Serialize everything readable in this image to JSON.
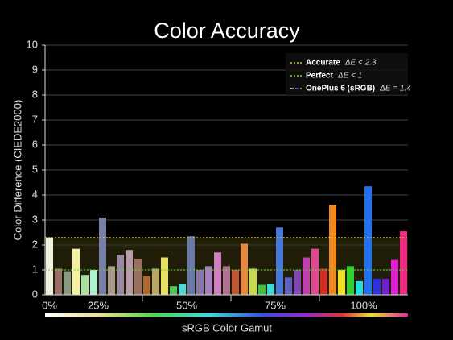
{
  "chart_data": {
    "type": "bar",
    "title": "Color Accuracy",
    "y_label": "Color Difference (CIEDE2000)",
    "x_label": "sRGB Color Gamut",
    "x_tick_labels": [
      "0%",
      "25%",
      "50%",
      "75%",
      "100%"
    ],
    "ylim": [
      0,
      10
    ],
    "yticks": [
      0,
      1,
      2,
      3,
      4,
      5,
      6,
      7,
      8,
      9,
      10
    ],
    "grid": true,
    "legend_position": "upper right",
    "reference_lines": [
      {
        "name": "Accurate",
        "label": "ΔE < 2.3",
        "value": 2.3,
        "color": "#d8c020"
      },
      {
        "name": "Perfect",
        "label": "ΔE < 1",
        "value": 1,
        "color": "#6cd040"
      }
    ],
    "series": [
      {
        "name": "OnePlus 6 (sRGB)",
        "label": "ΔE = 1.4",
        "values": [
          2.3,
          1.05,
          0.95,
          1.85,
          0.8,
          1.0,
          3.1,
          1.15,
          1.6,
          1.8,
          1.45,
          0.75,
          1.05,
          1.5,
          0.35,
          0.45,
          2.35,
          1.0,
          1.15,
          1.7,
          1.15,
          1.0,
          2.05,
          1.05,
          0.4,
          0.45,
          2.7,
          0.7,
          1.0,
          1.5,
          1.85,
          1.05,
          3.6,
          1.0,
          1.15,
          0.55,
          4.35,
          0.65,
          0.65,
          1.4,
          2.55
        ],
        "colors": [
          "#f2f0e0",
          "#9c6f6a",
          "#8a9a80",
          "#f4f0a0",
          "#a8e0a0",
          "#b0f0d0",
          "#7880a8",
          "#a89888",
          "#9a88a0",
          "#b89aa8",
          "#9a7060",
          "#b06830",
          "#b8a868",
          "#e8e060",
          "#50c860",
          "#50d8d8",
          "#6878a8",
          "#8878a8",
          "#a880c0",
          "#d080c0",
          "#b07090",
          "#c05838",
          "#e88840",
          "#c8d850",
          "#40c040",
          "#40d8d8",
          "#4878d8",
          "#6060c0",
          "#8048b0",
          "#c040b0",
          "#e04890",
          "#d03020",
          "#f08820",
          "#f0e020",
          "#30d030",
          "#20e0e0",
          "#2070f0",
          "#3030e0",
          "#7020d0",
          "#e020d0",
          "#f02880"
        ]
      }
    ]
  }
}
